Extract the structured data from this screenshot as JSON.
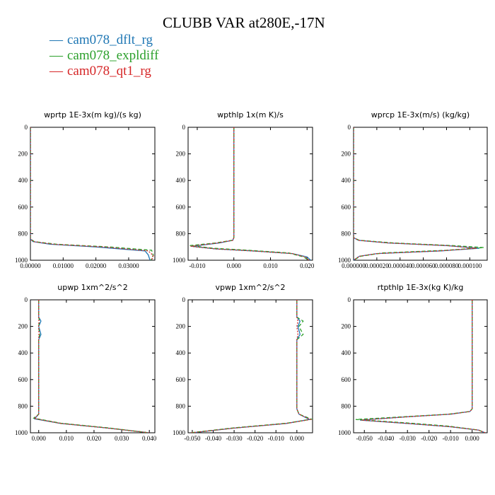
{
  "title": "CLUBB VAR at280E,-17N",
  "legend": [
    {
      "label": "cam078_dflt_rg",
      "color": "#1f77b4"
    },
    {
      "label": "cam078_expldiff",
      "color": "#2ca02c"
    },
    {
      "label": "cam078_qt1_rg",
      "color": "#d62728"
    }
  ],
  "chart_data": [
    {
      "type": "line",
      "title": "wprtp  1E-3x(m kg)/(s kg)",
      "xlim": [
        0,
        0.038
      ],
      "ylim": [
        1000,
        0
      ],
      "xticks": [
        0,
        0.01,
        0.02,
        0.03
      ],
      "xticklabels": [
        "0.00000",
        "0.01000",
        "0.02000",
        "0.03000"
      ],
      "yticks": [
        0,
        200,
        400,
        600,
        800,
        1000
      ],
      "series": [
        {
          "name": "cam078_dflt_rg",
          "x": [
            0,
            0,
            0.0008,
            0.006,
            0.02,
            0.035,
            0.036,
            0.0365
          ],
          "y": [
            0,
            840,
            860,
            880,
            900,
            930,
            960,
            1000
          ]
        },
        {
          "name": "cam078_expldiff",
          "x": [
            0,
            0,
            0.0012,
            0.008,
            0.024,
            0.037,
            0.0375,
            0.0368
          ],
          "y": [
            0,
            840,
            860,
            880,
            900,
            925,
            960,
            1000
          ]
        },
        {
          "name": "cam078_qt1_rg",
          "x": [
            0,
            0,
            0.001,
            0.007,
            0.022,
            0.036,
            0.0375,
            0.037
          ],
          "y": [
            0,
            840,
            860,
            880,
            900,
            930,
            965,
            1000
          ]
        }
      ]
    },
    {
      "type": "line",
      "title": "wpthlp  1x(m K)/s",
      "xlim": [
        -0.0125,
        0.0215
      ],
      "ylim": [
        1000,
        0
      ],
      "xticks": [
        -0.01,
        0,
        0.01,
        0.02
      ],
      "xticklabels": [
        "-0.010",
        "0.000",
        "0.010",
        "0.020"
      ],
      "yticks": [
        0,
        200,
        400,
        600,
        800,
        1000
      ],
      "series": [
        {
          "name": "cam078_dflt_rg",
          "x": [
            0,
            0,
            -0.0003,
            -0.004,
            -0.0115,
            -0.005,
            0.005,
            0.016,
            0.02,
            0.021
          ],
          "y": [
            0,
            830,
            850,
            870,
            895,
            915,
            930,
            950,
            975,
            1000
          ]
        },
        {
          "name": "cam078_expldiff",
          "x": [
            0,
            0,
            -0.0004,
            -0.005,
            -0.012,
            -0.0055,
            0.004,
            0.015,
            0.019,
            0.0205
          ],
          "y": [
            0,
            830,
            850,
            870,
            890,
            910,
            925,
            945,
            975,
            1000
          ]
        },
        {
          "name": "cam078_qt1_rg",
          "x": [
            0,
            0,
            -0.0003,
            -0.0045,
            -0.0118,
            -0.005,
            0.005,
            0.016,
            0.0195,
            0.0205
          ],
          "y": [
            0,
            830,
            850,
            870,
            895,
            915,
            930,
            950,
            975,
            1000
          ]
        }
      ]
    },
    {
      "type": "line",
      "title": "wprcp  1E-3x(m/s) (kg/kg)",
      "xlim": [
        0,
        0.000115
      ],
      "ylim": [
        1000,
        0
      ],
      "xticks": [
        0,
        2e-05,
        4e-05,
        6e-05,
        8e-05,
        0.0001
      ],
      "xticklabels": [
        "0.000000",
        "0.000020",
        "0.000040",
        "0.000060",
        "0.000080",
        "0.000100"
      ],
      "yticks": [
        0,
        200,
        400,
        600,
        800,
        1000
      ],
      "series": [
        {
          "name": "cam078_dflt_rg",
          "x": [
            0,
            0,
            4e-06,
            3e-05,
            8e-05,
            0.000108,
            7.5e-05,
            2e-05,
            5e-06,
            0
          ],
          "y": [
            0,
            830,
            850,
            870,
            890,
            910,
            930,
            950,
            970,
            1000
          ]
        },
        {
          "name": "cam078_expldiff",
          "x": [
            0,
            0,
            5e-06,
            3.5e-05,
            8.5e-05,
            0.000112,
            8e-05,
            2.5e-05,
            6e-06,
            0
          ],
          "y": [
            0,
            830,
            850,
            870,
            890,
            905,
            925,
            945,
            970,
            1000
          ]
        },
        {
          "name": "cam078_qt1_rg",
          "x": [
            0,
            0,
            4e-06,
            3e-05,
            8e-05,
            0.000106,
            7.4e-05,
            2e-05,
            5e-06,
            0
          ],
          "y": [
            0,
            830,
            850,
            870,
            890,
            910,
            930,
            950,
            970,
            1000
          ]
        }
      ]
    },
    {
      "type": "line",
      "title": "upwp  1xm^2/s^2",
      "xlim": [
        -0.003,
        0.042
      ],
      "ylim": [
        1000,
        0
      ],
      "xticks": [
        0,
        0.01,
        0.02,
        0.03,
        0.04
      ],
      "xticklabels": [
        "0.000",
        "0.010",
        "0.020",
        "0.030",
        "0.040"
      ],
      "yticks": [
        0,
        200,
        400,
        600,
        800,
        1000
      ],
      "series": [
        {
          "name": "cam078_dflt_rg",
          "x": [
            0,
            0,
            0.0008,
            0,
            0.0008,
            0,
            0,
            0,
            -0.0015,
            0.008,
            0.025,
            0.04
          ],
          "y": [
            0,
            130,
            160,
            200,
            260,
            300,
            820,
            860,
            895,
            930,
            965,
            1000
          ]
        },
        {
          "name": "cam078_expldiff",
          "x": [
            0,
            0,
            0.0003,
            0,
            0.0003,
            0,
            0,
            0,
            -0.0018,
            0.008,
            0.025,
            0.0398
          ],
          "y": [
            0,
            130,
            160,
            200,
            260,
            300,
            820,
            860,
            890,
            928,
            963,
            1000
          ]
        },
        {
          "name": "cam078_qt1_rg",
          "x": [
            0,
            0,
            0.0001,
            0,
            0.0001,
            0,
            0,
            0,
            -0.0016,
            0.008,
            0.025,
            0.0399
          ],
          "y": [
            0,
            130,
            160,
            200,
            260,
            300,
            820,
            860,
            893,
            930,
            965,
            1000
          ]
        }
      ]
    },
    {
      "type": "line",
      "title": "vpwp  1xm^2/s^2",
      "xlim": [
        -0.052,
        0.0075
      ],
      "ylim": [
        1000,
        0
      ],
      "xticks": [
        -0.05,
        -0.04,
        -0.03,
        -0.02,
        -0.01,
        0
      ],
      "xticklabels": [
        "-0.050",
        "-0.040",
        "-0.030",
        "-0.020",
        "-0.010",
        "0.000"
      ],
      "yticks": [
        0,
        200,
        400,
        600,
        800,
        1000
      ],
      "series": [
        {
          "name": "cam078_dflt_rg",
          "x": [
            0,
            0,
            0.0015,
            0.0005,
            0.0015,
            0,
            0,
            0.001,
            0.006,
            -0.005,
            -0.03,
            -0.05
          ],
          "y": [
            0,
            130,
            160,
            200,
            260,
            300,
            820,
            860,
            900,
            930,
            965,
            1000
          ]
        },
        {
          "name": "cam078_expldiff",
          "x": [
            0,
            0,
            0.003,
            0.001,
            0.003,
            0,
            0,
            0.001,
            0.007,
            -0.005,
            -0.03,
            -0.051
          ],
          "y": [
            0,
            130,
            160,
            200,
            260,
            300,
            820,
            860,
            898,
            928,
            963,
            1000
          ]
        },
        {
          "name": "cam078_qt1_rg",
          "x": [
            0,
            0,
            0.0005,
            0,
            0.0005,
            0,
            0,
            0.001,
            0.0065,
            -0.005,
            -0.03,
            -0.0505
          ],
          "y": [
            0,
            130,
            160,
            200,
            260,
            300,
            820,
            860,
            900,
            930,
            965,
            1000
          ]
        }
      ]
    },
    {
      "type": "line",
      "title": "rtpthlp  1E-3x(kg K)/kg",
      "xlim": [
        -0.055,
        0.007
      ],
      "ylim": [
        1000,
        0
      ],
      "xticks": [
        -0.05,
        -0.04,
        -0.03,
        -0.02,
        -0.01,
        0
      ],
      "xticklabels": [
        "-0.050",
        "-0.040",
        "-0.030",
        "-0.020",
        "-0.010",
        "0.000"
      ],
      "yticks": [
        0,
        200,
        400,
        600,
        800,
        1000
      ],
      "series": [
        {
          "name": "cam078_dflt_rg",
          "x": [
            0,
            0,
            -0.001,
            -0.01,
            -0.03,
            -0.052,
            -0.03,
            -0.01,
            0.003,
            0.006
          ],
          "y": [
            0,
            820,
            840,
            860,
            880,
            905,
            930,
            955,
            980,
            1000
          ]
        },
        {
          "name": "cam078_expldiff",
          "x": [
            0,
            0,
            -0.0012,
            -0.011,
            -0.032,
            -0.054,
            -0.031,
            -0.011,
            0.003,
            0.006
          ],
          "y": [
            0,
            820,
            840,
            860,
            880,
            900,
            925,
            950,
            980,
            1000
          ]
        },
        {
          "name": "cam078_qt1_rg",
          "x": [
            0,
            0,
            -0.001,
            -0.01,
            -0.03,
            -0.0515,
            -0.03,
            -0.01,
            0.003,
            0.006
          ],
          "y": [
            0,
            820,
            840,
            860,
            880,
            905,
            930,
            955,
            980,
            1000
          ]
        }
      ]
    }
  ]
}
